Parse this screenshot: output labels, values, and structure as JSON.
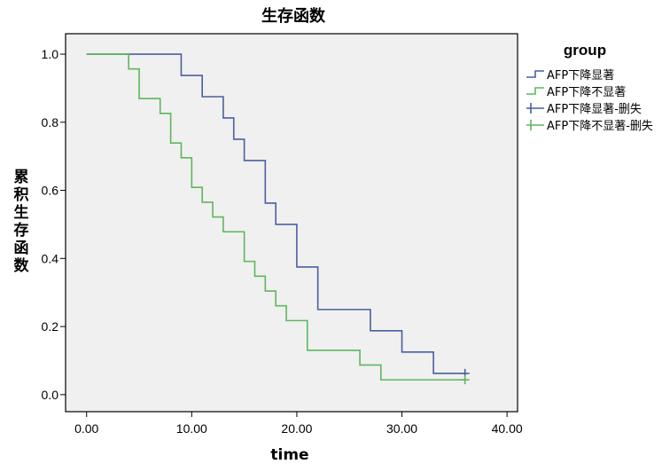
{
  "chart_data": {
    "type": "line",
    "title": "生存函数",
    "xlabel": "time",
    "ylabel": "累积生存函数",
    "xlim": [
      -2,
      41
    ],
    "ylim": [
      -0.05,
      1.06
    ],
    "xticks": [
      "0.00",
      "10.00",
      "20.00",
      "30.00",
      "40.00"
    ],
    "yticks": [
      "0.0",
      "0.2",
      "0.4",
      "0.6",
      "0.8",
      "1.0"
    ],
    "grid": false,
    "background": "#f0f0f0",
    "legend": {
      "title": "group",
      "position": "right",
      "entries": [
        "AFP下降显著",
        "AFP下降不显著",
        "AFP下降显著-删失",
        "AFP下降不显著-删失"
      ]
    },
    "series": [
      {
        "name": "AFP下降显著",
        "color": "#4a5fa0",
        "step": true,
        "x": [
          0,
          9,
          11,
          13,
          14,
          15,
          17,
          18,
          20,
          22,
          27,
          30,
          33,
          36
        ],
        "y": [
          1.0,
          0.9375,
          0.875,
          0.8125,
          0.75,
          0.6875,
          0.5625,
          0.5,
          0.375,
          0.25,
          0.1875,
          0.125,
          0.0625,
          0.0625
        ],
        "censored": [
          {
            "x": 36,
            "y": 0.0625
          }
        ]
      },
      {
        "name": "AFP下降不显著",
        "color": "#5cb85c",
        "step": true,
        "x": [
          0,
          4,
          5,
          7,
          8,
          9,
          10,
          11,
          12,
          13,
          15,
          16,
          17,
          18,
          19,
          21,
          26,
          28,
          36
        ],
        "y": [
          1.0,
          0.9565,
          0.8696,
          0.8261,
          0.7391,
          0.6957,
          0.6087,
          0.5652,
          0.5217,
          0.4783,
          0.3913,
          0.3478,
          0.3043,
          0.2609,
          0.2174,
          0.1304,
          0.087,
          0.0435,
          0.0435
        ],
        "censored": [
          {
            "x": 36,
            "y": 0.0435
          }
        ]
      }
    ]
  }
}
